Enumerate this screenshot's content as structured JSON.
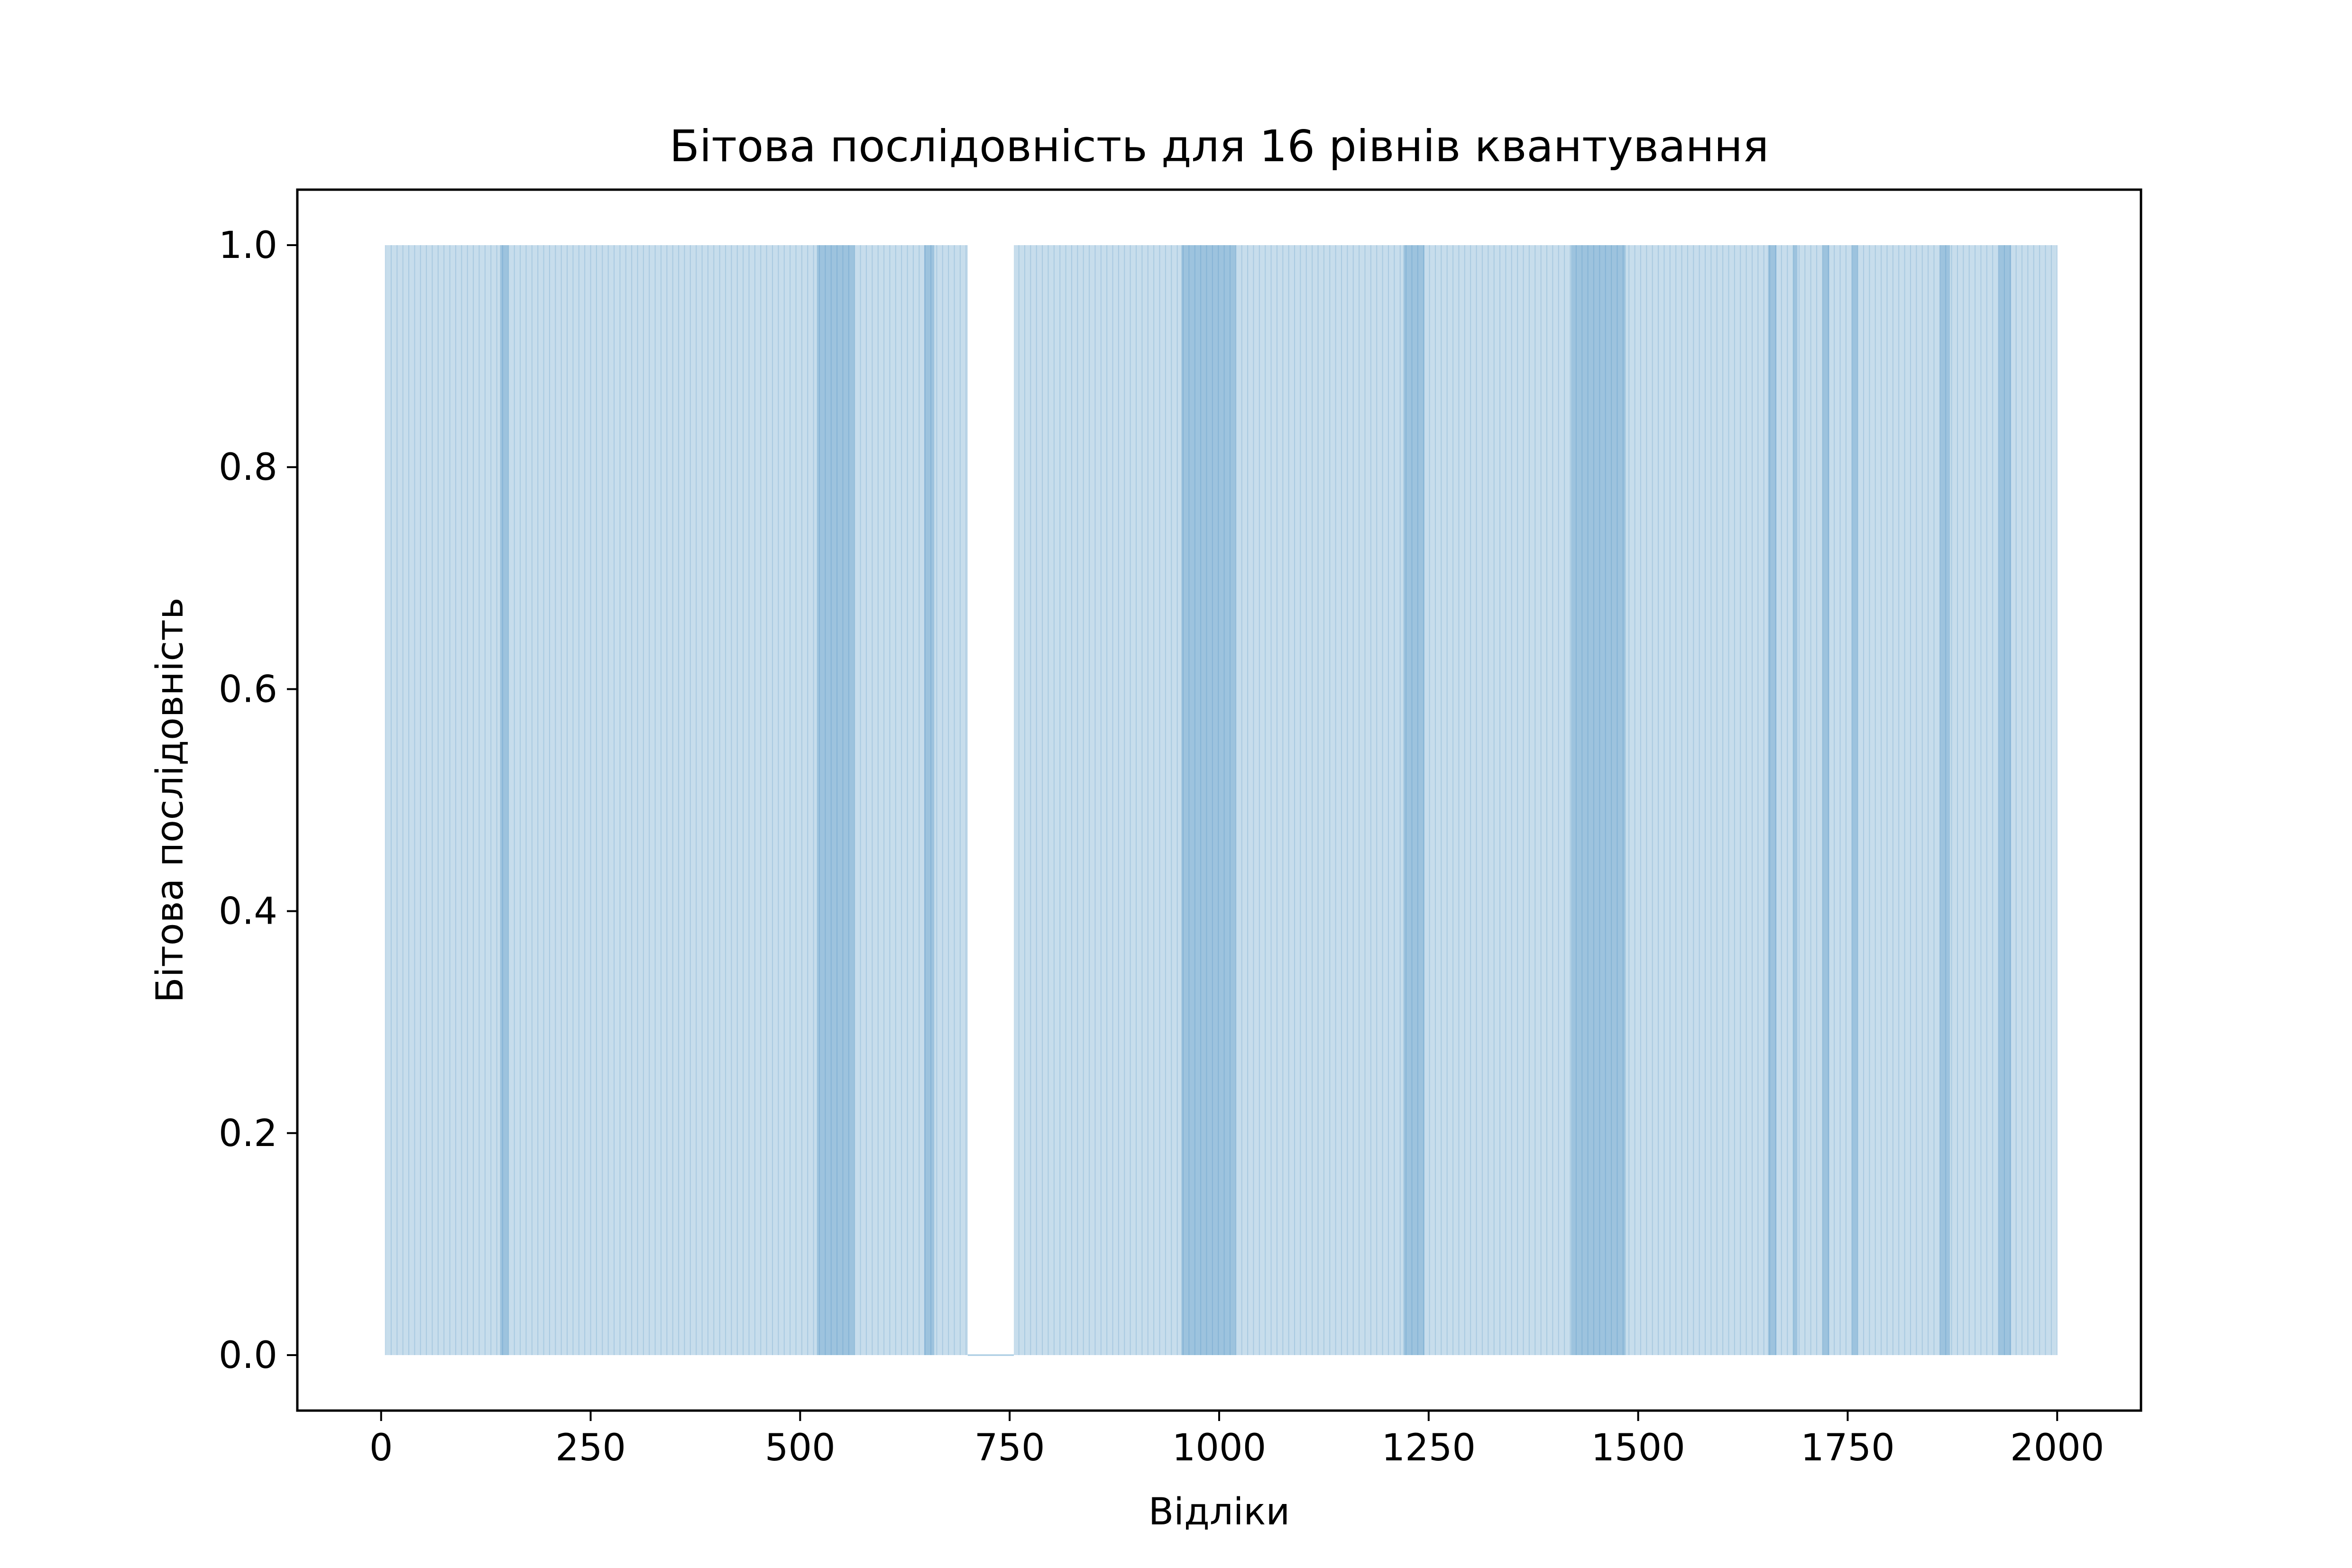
{
  "chart_data": {
    "type": "bar",
    "title": "Бітова послідовність для 16 рівнів квантування",
    "xlabel": "Відліки",
    "ylabel": "Бітова послідовність",
    "xlim": [
      -100,
      2100
    ],
    "ylim": [
      -0.05,
      1.05
    ],
    "x_ticks": [
      0,
      250,
      500,
      750,
      1000,
      1250,
      1500,
      1750,
      2000
    ],
    "x_tick_labels": [
      "0",
      "250",
      "500",
      "750",
      "1000",
      "1250",
      "1500",
      "1750",
      "2000"
    ],
    "y_ticks": [
      0.0,
      0.2,
      0.4,
      0.6,
      0.8,
      1.0
    ],
    "y_tick_labels": [
      "0.0",
      "0.2",
      "0.4",
      "0.6",
      "0.8",
      "1.0"
    ],
    "grid": false,
    "legend": "none",
    "bar_color": "#1f77b4",
    "bar_alpha": 0.25,
    "n_samples": 2000,
    "series": [
      {
        "values_one_runs": [
          [
            5,
            140
          ],
          [
            142,
            700
          ],
          [
            755,
            2000
          ]
        ],
        "dense_one_runs": [
          [
            140,
            152
          ],
          [
            520,
            565
          ],
          [
            648,
            660
          ],
          [
            955,
            1020
          ],
          [
            1220,
            1245
          ],
          [
            1420,
            1485
          ],
          [
            1655,
            1665
          ],
          [
            1685,
            1690
          ],
          [
            1720,
            1728
          ],
          [
            1755,
            1762
          ],
          [
            1860,
            1872
          ],
          [
            1930,
            1945
          ]
        ]
      }
    ]
  }
}
